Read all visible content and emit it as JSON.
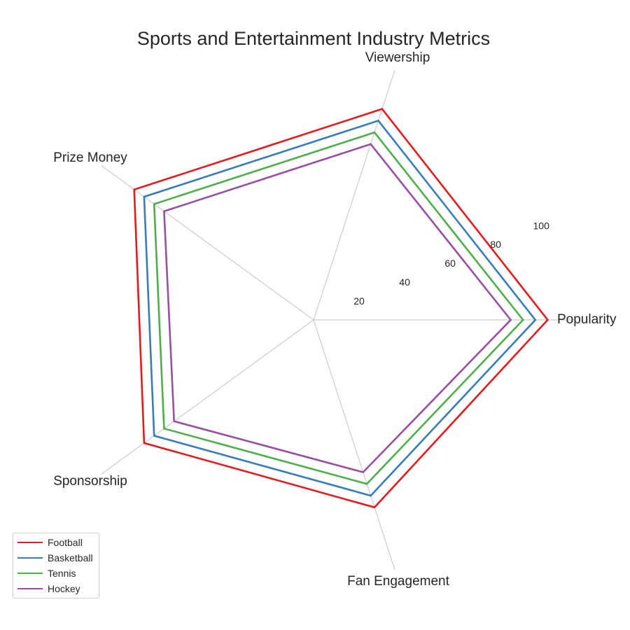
{
  "chart_data": {
    "type": "radar",
    "title": "Sports and Entertainment Industry Metrics",
    "axes": [
      "Popularity",
      "Viewership",
      "Fan Engagement",
      "Sponsorship",
      "Prize Money"
    ],
    "rlim": [
      0,
      100
    ],
    "r_ticks": [
      20,
      40,
      60,
      80,
      100
    ],
    "grid": "spokes only",
    "legend_position": "lower-left",
    "series": [
      {
        "name": "Football",
        "color": "#e41a1c",
        "values": {
          "Popularity": 95,
          "Viewership": 90,
          "Fan Engagement": 90,
          "Sponsorship": 85,
          "Prize Money": 80
        }
      },
      {
        "name": "Basketball",
        "color": "#377eb8",
        "values": {
          "Popularity": 90,
          "Viewership": 85,
          "Fan Engagement": 85,
          "Sponsorship": 80,
          "Prize Money": 75
        }
      },
      {
        "name": "Tennis",
        "color": "#4daf4a",
        "values": {
          "Popularity": 85,
          "Viewership": 80,
          "Fan Engagement": 80,
          "Sponsorship": 75,
          "Prize Money": 70
        }
      },
      {
        "name": "Hockey",
        "color": "#984ea3",
        "values": {
          "Popularity": 80,
          "Viewership": 75,
          "Fan Engagement": 75,
          "Sponsorship": 70,
          "Prize Money": 65
        }
      }
    ]
  }
}
